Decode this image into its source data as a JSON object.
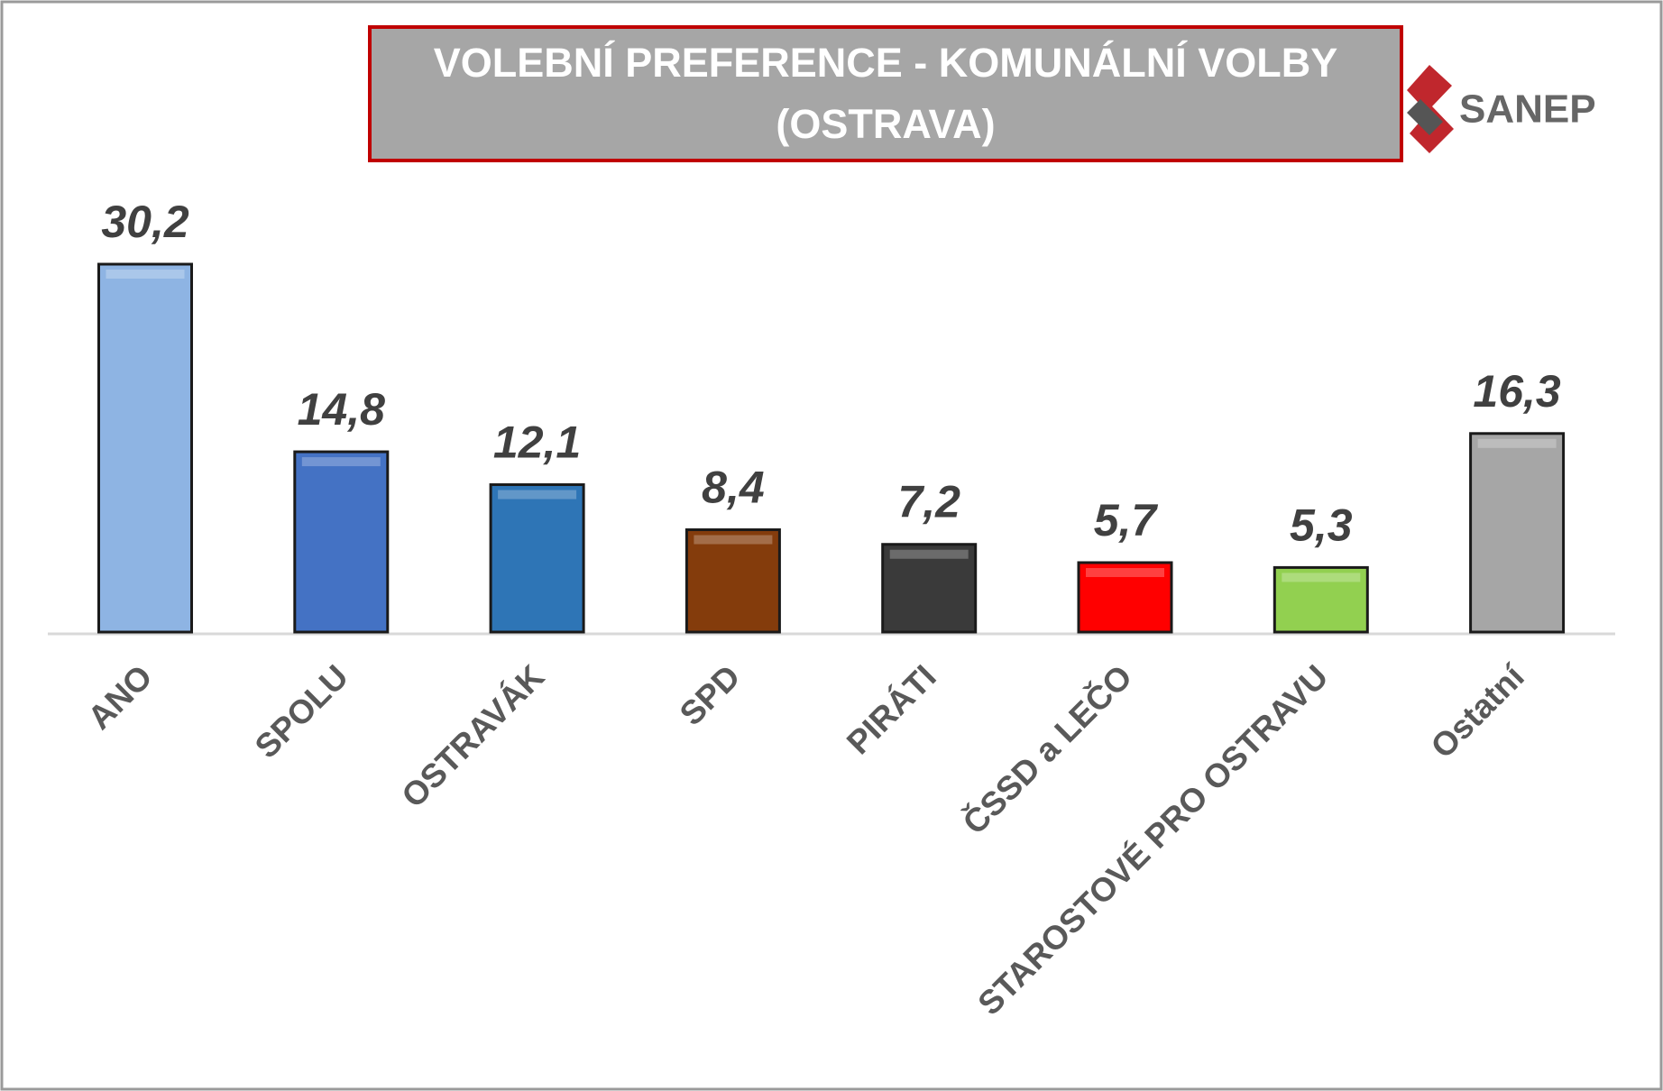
{
  "chart_data": {
    "type": "bar",
    "title": "VOLEBNÍ PREFERENCE - KOMUNÁLNÍ VOLBY (OSTRAVA)",
    "logo": "SANEP",
    "categories": [
      "ANO",
      "SPOLU",
      "OSTRAVÁK",
      "SPD",
      "PIRÁTI",
      "ČSSD a LEČO",
      "STAROSTOVÉ PRO OSTRAVU",
      "Ostatní"
    ],
    "values": [
      30.2,
      14.8,
      12.1,
      8.4,
      7.2,
      5.7,
      5.3,
      16.3
    ],
    "value_labels": [
      "30,2",
      "14,8",
      "12,1",
      "8,4",
      "7,2",
      "5,7",
      "5,3",
      "16,3"
    ],
    "colors": [
      "#8eb4e3",
      "#4472c4",
      "#2e75b6",
      "#843c0c",
      "#3a3a3a",
      "#ff0000",
      "#92d050",
      "#a6a6a6"
    ]
  }
}
